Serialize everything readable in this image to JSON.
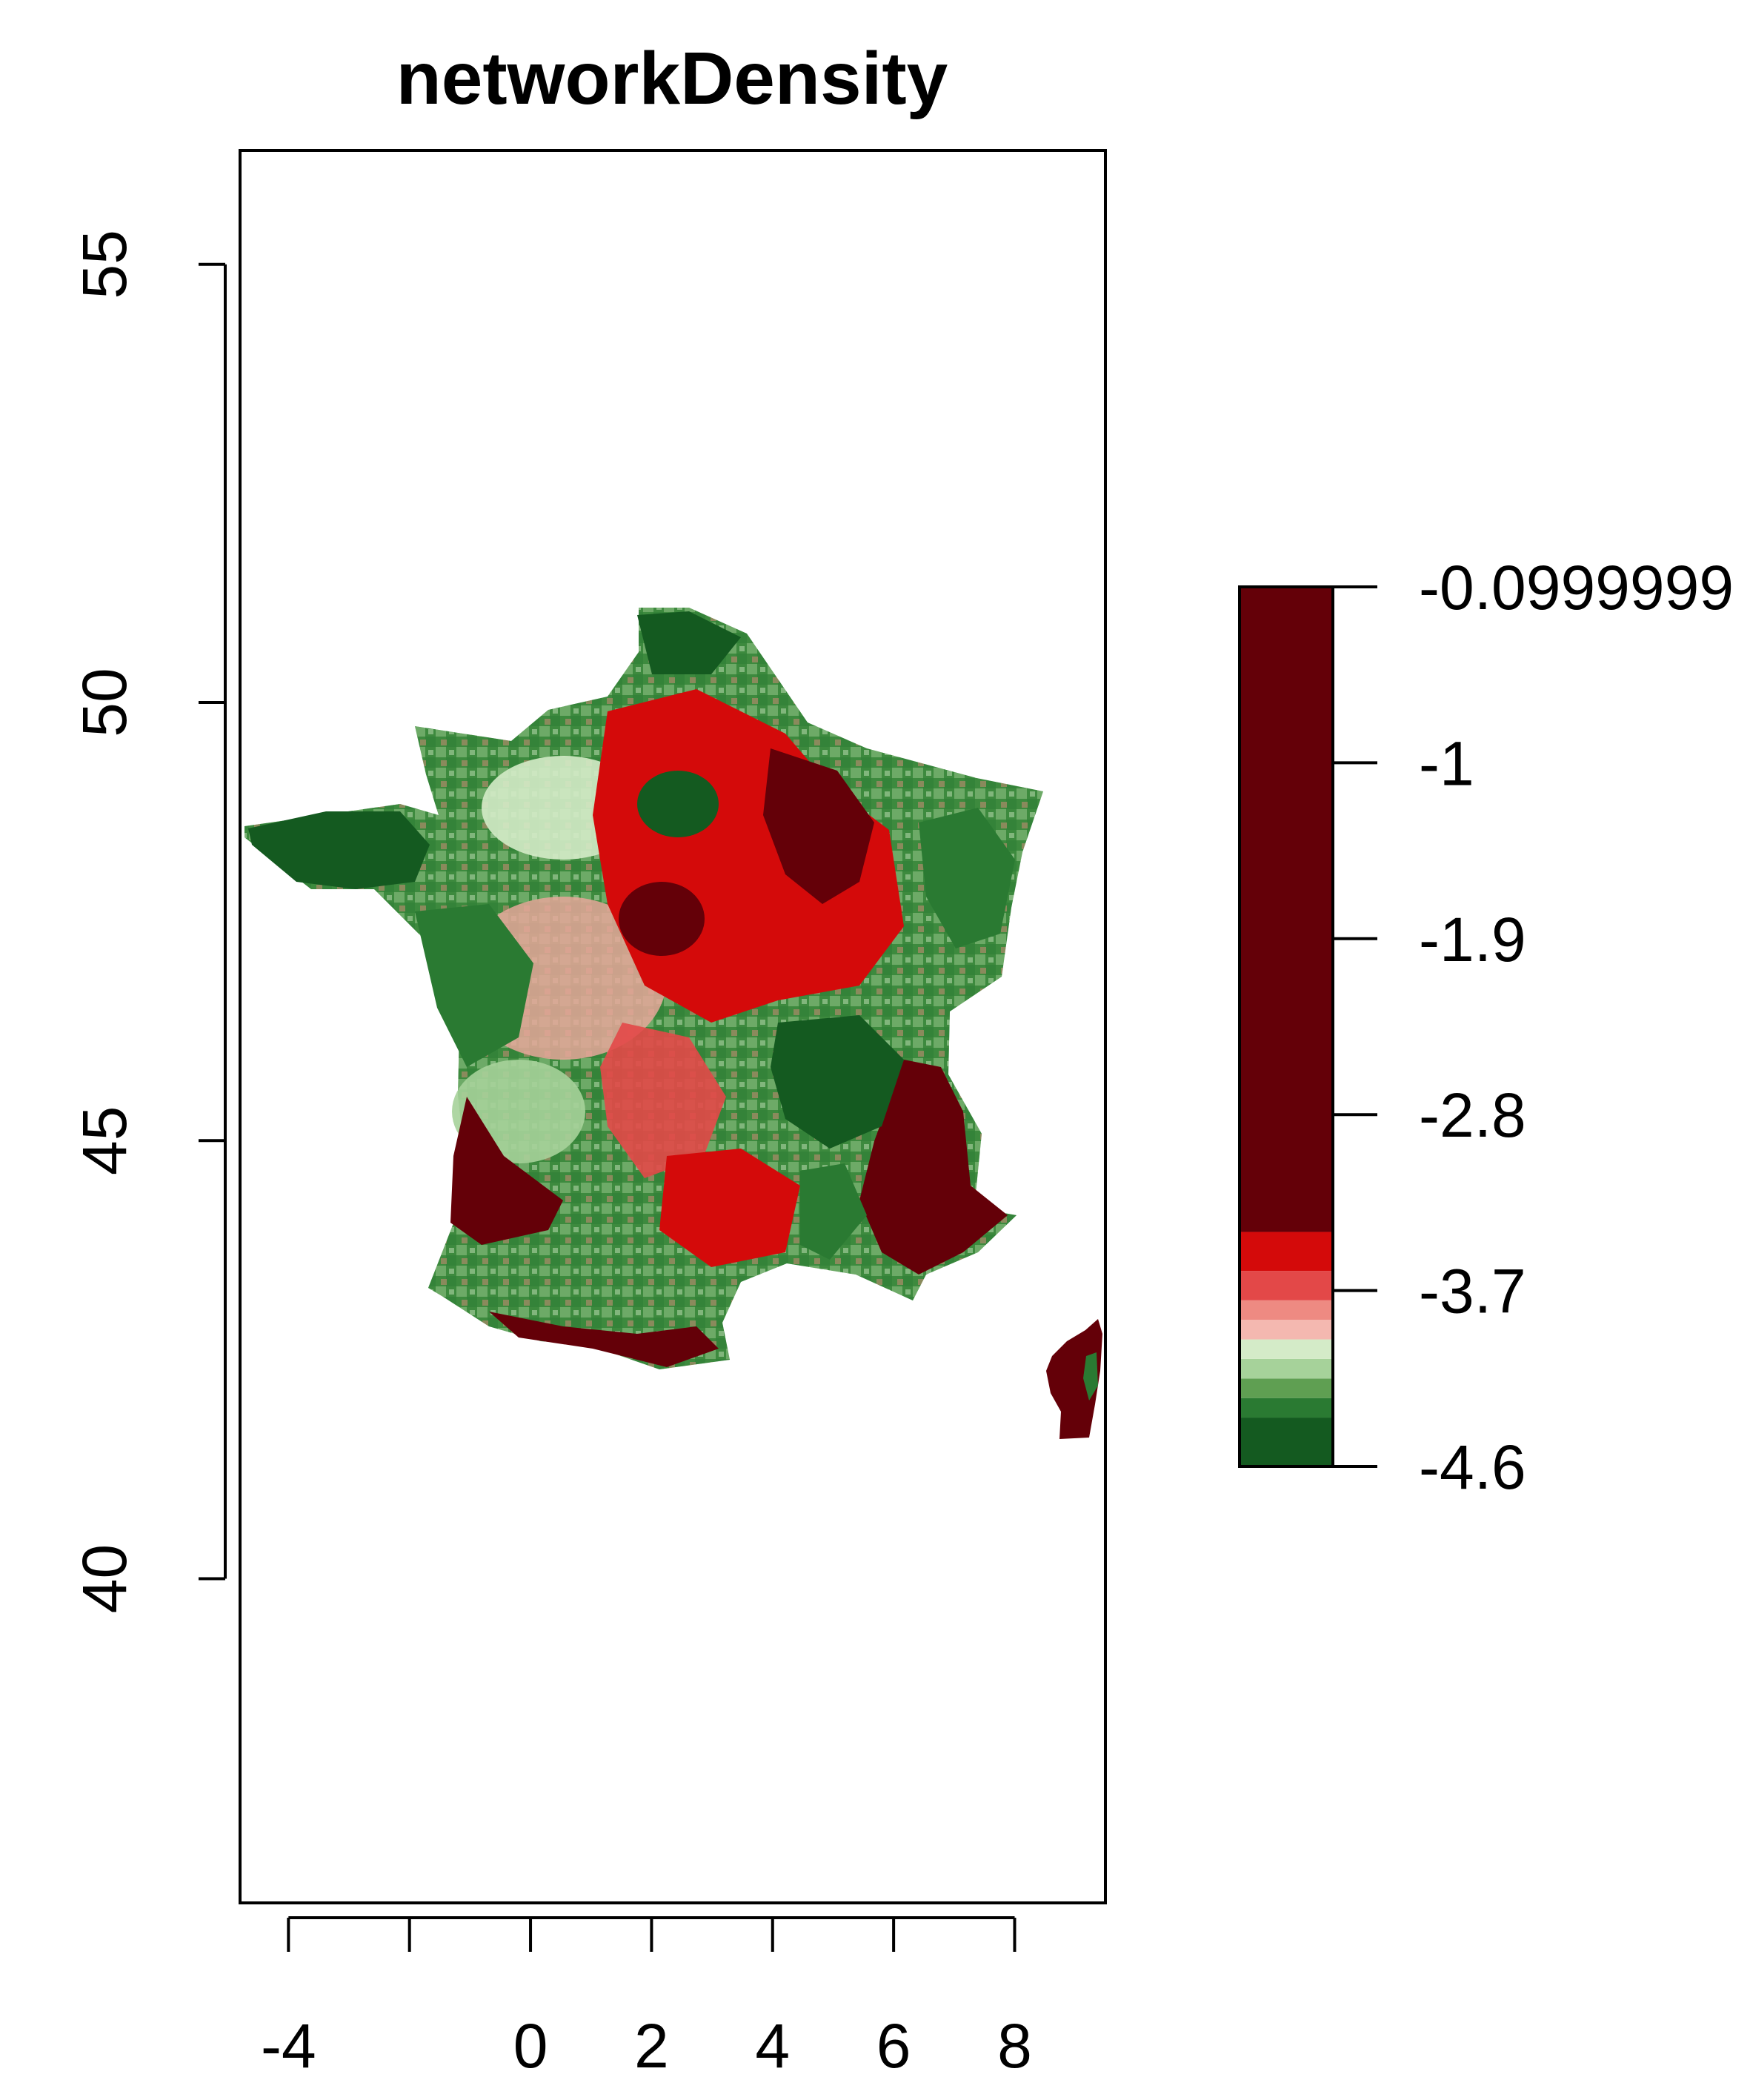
{
  "title": "networkDensity",
  "x_axis": {
    "ticks": [
      -4,
      -2,
      0,
      2,
      4,
      6,
      8
    ],
    "tick_labels": [
      "-4",
      "",
      "0",
      "2",
      "4",
      "6",
      "8"
    ],
    "range": [
      -4.8,
      9.5
    ]
  },
  "y_axis": {
    "ticks": [
      40,
      45,
      50,
      55
    ],
    "tick_labels": [
      "40",
      "45",
      "50",
      "55"
    ],
    "range": [
      36.3,
      56.3
    ]
  },
  "legend": {
    "ticks": [
      -0.0999999,
      -1,
      -1.9,
      -2.8,
      -3.7,
      -4.6
    ],
    "tick_labels": [
      "-0.0999999",
      "-1",
      "-1.9",
      "-2.8",
      "-3.7",
      "-4.6"
    ],
    "range": [
      -4.6,
      -0.0999999
    ],
    "color_stops": [
      {
        "from": -4.6,
        "to": -4.35,
        "color": "#145a20"
      },
      {
        "from": -4.35,
        "to": -4.25,
        "color": "#2a7a32"
      },
      {
        "from": -4.25,
        "to": -4.15,
        "color": "#5f9f52"
      },
      {
        "from": -4.15,
        "to": -4.05,
        "color": "#a6d29a"
      },
      {
        "from": -4.05,
        "to": -3.95,
        "color": "#d4ebc8"
      },
      {
        "from": -3.95,
        "to": -3.85,
        "color": "#f4b8b0"
      },
      {
        "from": -3.85,
        "to": -3.75,
        "color": "#ee8a82"
      },
      {
        "from": -3.75,
        "to": -3.6,
        "color": "#e34848"
      },
      {
        "from": -3.6,
        "to": -3.4,
        "color": "#d40a0a"
      },
      {
        "from": -3.4,
        "to": -0.0999999,
        "color": "#640008"
      }
    ]
  },
  "chart_data": {
    "type": "heatmap",
    "title": "networkDensity",
    "xlim": [
      -4.8,
      9.5
    ],
    "ylim": [
      36.3,
      56.3
    ],
    "value_range": [
      -4.6,
      -0.0999999
    ],
    "grid": false,
    "legend_position": "right",
    "regions": [
      {
        "lon": 2.3,
        "lat": 48.85,
        "value": -4.5
      },
      {
        "lon": -3.0,
        "lat": 48.2,
        "value": -4.4
      },
      {
        "lon": 1.5,
        "lat": 47.6,
        "value": -0.5
      },
      {
        "lon": 5.0,
        "lat": 48.3,
        "value": -0.6
      },
      {
        "lon": 4.0,
        "lat": 46.3,
        "value": -4.4
      },
      {
        "lon": 6.5,
        "lat": 44.5,
        "value": -0.4
      },
      {
        "lon": -0.5,
        "lat": 44.1,
        "value": -0.5
      },
      {
        "lon": 2.0,
        "lat": 42.9,
        "value": -0.6
      },
      {
        "lon": 9.1,
        "lat": 42.2,
        "value": -0.5
      },
      {
        "lon": 0.5,
        "lat": 46.0,
        "value": -4.3
      },
      {
        "lon": 3.5,
        "lat": 49.4,
        "value": -3.6
      }
    ]
  }
}
